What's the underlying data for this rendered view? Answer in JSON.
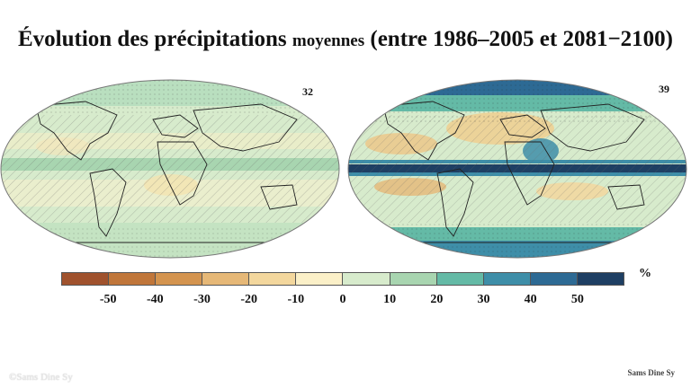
{
  "title": {
    "part1": "Évolution des précipitations",
    "part2": "moyennes",
    "part3": "(entre 1986–2005 et 2081−2100)"
  },
  "maps": [
    {
      "model_count": "32"
    },
    {
      "model_count": "39"
    }
  ],
  "colorbar": {
    "unit": "%",
    "ticks": [
      "-50",
      "-40",
      "-30",
      "-20",
      "-10",
      "0",
      "10",
      "20",
      "30",
      "40",
      "50"
    ],
    "colors": [
      "#a0522d",
      "#c0763a",
      "#d4944f",
      "#e6b877",
      "#f3d79d",
      "#fbf0c8",
      "#d7ebcc",
      "#a8d5b0",
      "#64baa6",
      "#3e8ea8",
      "#2d6a94",
      "#1e3f63"
    ]
  },
  "watermark": "©Sams Dine Sy",
  "credit": "Sams Dine Sy"
}
